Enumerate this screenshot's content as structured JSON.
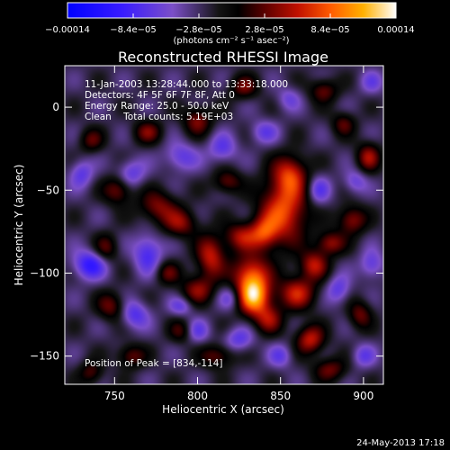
{
  "chart_data": {
    "type": "heatmap",
    "title": "Reconstructed RHESSI Image",
    "xlabel": "Heliocentric X (arcsec)",
    "ylabel": "Heliocentric Y (arcsec)",
    "xlim": [
      720,
      912
    ],
    "ylim": [
      -167,
      25
    ],
    "x_ticks": [
      750,
      800,
      850,
      900
    ],
    "x_tick_labels": [
      "750",
      "800",
      "850",
      "900"
    ],
    "y_ticks": [
      0,
      -50,
      -100,
      -150
    ],
    "y_tick_labels": [
      "0",
      "−50",
      "−100",
      "−150"
    ],
    "colorbar": {
      "ticks": [
        -0.00014,
        -8.4e-05,
        -2.8e-05,
        2.8e-05,
        8.4e-05,
        0.00014
      ],
      "tick_labels": [
        "−0.00014",
        "−8.4e−05",
        "−2.8e−05",
        "2.8e−05",
        "8.4e−05",
        "0.00014"
      ],
      "range": [
        -0.00014,
        0.00014
      ],
      "units": "(photons cm⁻² s⁻¹ asec⁻²)"
    },
    "annotations": {
      "time": "11-Jan-2003 13:28:44.000 to 13:33:18.000",
      "detectors": "Detectors: 4F 5F 6F 7F 8F, Att 0",
      "energy": "Energy Range: 25.0 - 50.0 keV",
      "clean": "Clean    Total counts: 5.19E+03",
      "peak": "Position of Peak = [834,-114]"
    },
    "peak": {
      "x": 834,
      "y": -114
    },
    "sources": [
      {
        "x": 834,
        "y": -114,
        "sx": 7,
        "sy": 8,
        "a": 1.0
      },
      {
        "x": 832,
        "y": -100,
        "sx": 8,
        "sy": 8,
        "a": 0.65
      },
      {
        "x": 843,
        "y": -128,
        "sx": 6,
        "sy": 6,
        "a": 0.45
      },
      {
        "x": 852,
        "y": -62,
        "sx": 10,
        "sy": 14,
        "a": 0.75
      },
      {
        "x": 856,
        "y": -40,
        "sx": 7,
        "sy": 8,
        "a": 0.55
      },
      {
        "x": 840,
        "y": -76,
        "sx": 6,
        "sy": 7,
        "a": 0.55
      },
      {
        "x": 826,
        "y": -78,
        "sx": 7,
        "sy": 6,
        "a": 0.5
      },
      {
        "x": 808,
        "y": -90,
        "sx": 6,
        "sy": 9,
        "a": 0.6
      },
      {
        "x": 800,
        "y": -110,
        "sx": 7,
        "sy": 6,
        "a": 0.45
      },
      {
        "x": 790,
        "y": -70,
        "sx": 7,
        "sy": 6,
        "a": 0.45
      },
      {
        "x": 776,
        "y": -60,
        "sx": 8,
        "sy": 7,
        "a": 0.45
      },
      {
        "x": 752,
        "y": -50,
        "sx": 6,
        "sy": 6,
        "a": 0.45
      },
      {
        "x": 745,
        "y": -85,
        "sx": 5,
        "sy": 6,
        "a": 0.35
      },
      {
        "x": 748,
        "y": -120,
        "sx": 6,
        "sy": 6,
        "a": 0.4
      },
      {
        "x": 760,
        "y": -150,
        "sx": 6,
        "sy": 5,
        "a": 0.4
      },
      {
        "x": 782,
        "y": -100,
        "sx": 5,
        "sy": 5,
        "a": 0.35
      },
      {
        "x": 818,
        "y": -45,
        "sx": 6,
        "sy": 5,
        "a": 0.4
      },
      {
        "x": 860,
        "y": -112,
        "sx": 8,
        "sy": 7,
        "a": 0.6
      },
      {
        "x": 870,
        "y": -95,
        "sx": 6,
        "sy": 6,
        "a": 0.55
      },
      {
        "x": 880,
        "y": -82,
        "sx": 6,
        "sy": 5,
        "a": 0.5
      },
      {
        "x": 893,
        "y": -68,
        "sx": 6,
        "sy": 6,
        "a": 0.5
      },
      {
        "x": 903,
        "y": -30,
        "sx": 5,
        "sy": 6,
        "a": 0.5
      },
      {
        "x": 868,
        "y": -140,
        "sx": 6,
        "sy": 6,
        "a": 0.6
      },
      {
        "x": 880,
        "y": -158,
        "sx": 7,
        "sy": 5,
        "a": 0.4
      },
      {
        "x": 898,
        "y": -125,
        "sx": 5,
        "sy": 6,
        "a": 0.4
      },
      {
        "x": 800,
        "y": -8,
        "sx": 6,
        "sy": 6,
        "a": 0.45
      },
      {
        "x": 828,
        "y": 12,
        "sx": 6,
        "sy": 5,
        "a": 0.4
      },
      {
        "x": 876,
        "y": 10,
        "sx": 6,
        "sy": 5,
        "a": 0.4
      },
      {
        "x": 888,
        "y": -10,
        "sx": 5,
        "sy": 5,
        "a": 0.35
      },
      {
        "x": 770,
        "y": -15,
        "sx": 6,
        "sy": 5,
        "a": 0.4
      },
      {
        "x": 736,
        "y": -20,
        "sx": 5,
        "sy": 5,
        "a": 0.35
      },
      {
        "x": 812,
        "y": -150,
        "sx": 7,
        "sy": 5,
        "a": 0.4
      },
      {
        "x": 790,
        "y": -135,
        "sx": 5,
        "sy": 5,
        "a": 0.3
      },
      {
        "x": 736,
        "y": -160,
        "sx": 5,
        "sy": 5,
        "a": 0.35
      },
      {
        "x": 730,
        "y": -40,
        "sx": 5,
        "sy": 6,
        "a": -0.35
      },
      {
        "x": 735,
        "y": -95,
        "sx": 7,
        "sy": 6,
        "a": -0.55
      },
      {
        "x": 770,
        "y": -88,
        "sx": 6,
        "sy": 8,
        "a": -0.45
      },
      {
        "x": 762,
        "y": -125,
        "sx": 6,
        "sy": 6,
        "a": -0.4
      },
      {
        "x": 760,
        "y": -40,
        "sx": 6,
        "sy": 6,
        "a": -0.35
      },
      {
        "x": 790,
        "y": -30,
        "sx": 7,
        "sy": 6,
        "a": -0.35
      },
      {
        "x": 815,
        "y": -25,
        "sx": 6,
        "sy": 6,
        "a": -0.35
      },
      {
        "x": 800,
        "y": -135,
        "sx": 5,
        "sy": 5,
        "a": -0.3
      },
      {
        "x": 825,
        "y": -140,
        "sx": 6,
        "sy": 5,
        "a": -0.35
      },
      {
        "x": 850,
        "y": -150,
        "sx": 5,
        "sy": 5,
        "a": -0.3
      },
      {
        "x": 885,
        "y": -110,
        "sx": 5,
        "sy": 6,
        "a": -0.35
      },
      {
        "x": 905,
        "y": -95,
        "sx": 5,
        "sy": 6,
        "a": -0.35
      },
      {
        "x": 895,
        "y": -45,
        "sx": 5,
        "sy": 5,
        "a": -0.3
      },
      {
        "x": 873,
        "y": -50,
        "sx": 5,
        "sy": 6,
        "a": -0.35
      },
      {
        "x": 840,
        "y": -15,
        "sx": 6,
        "sy": 5,
        "a": -0.3
      },
      {
        "x": 855,
        "y": 5,
        "sx": 5,
        "sy": 5,
        "a": -0.25
      },
      {
        "x": 905,
        "y": 15,
        "sx": 5,
        "sy": 5,
        "a": -0.25
      },
      {
        "x": 900,
        "y": -150,
        "sx": 5,
        "sy": 5,
        "a": -0.3
      },
      {
        "x": 820,
        "y": -115,
        "sx": 5,
        "sy": 5,
        "a": -0.3
      },
      {
        "x": 790,
        "y": -120,
        "sx": 5,
        "sy": 4,
        "a": -0.3
      }
    ]
  },
  "footer": {
    "date": "24-May-2013 17:18"
  },
  "colors": {
    "background": "#000000",
    "text": "#ffffff"
  }
}
